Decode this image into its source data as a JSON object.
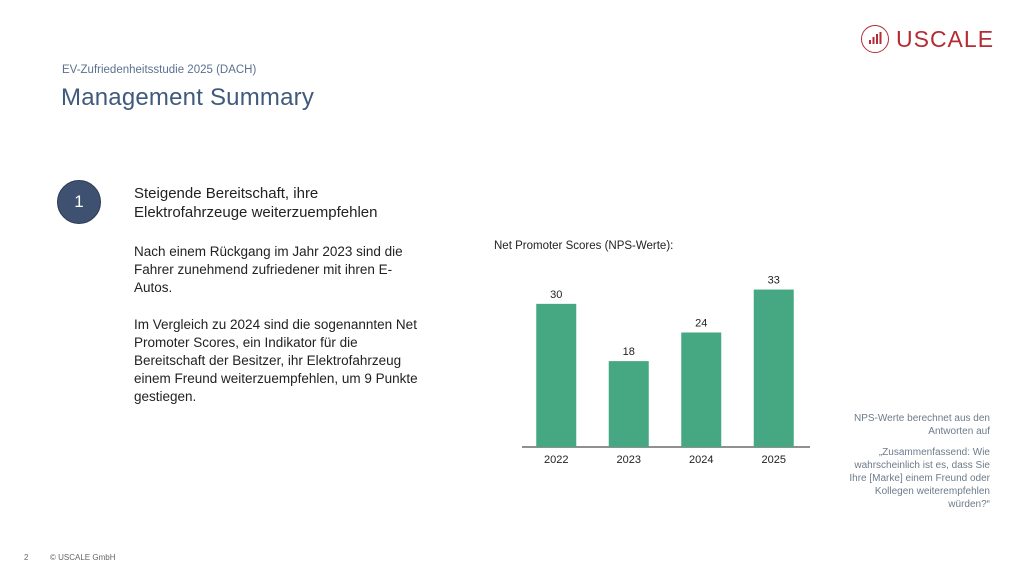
{
  "header": {
    "subtitle": "EV-Zufriedenheitsstudie 2025 (DACH)",
    "title": "Management Summary",
    "logo_text": "USCALE",
    "brand_color": "#b52b34"
  },
  "summary": {
    "number": "1",
    "headline": "Steigende Bereitschaft, ihre Elektrofahrzeuge weiterzuempfehlen",
    "paragraph1": "Nach einem Rückgang im Jahr 2023 sind die Fahrer zunehmend zufriedener mit ihren E-Autos.",
    "paragraph2": "Im Vergleich zu 2024 sind die sogenannten Net Promoter Scores, ein Indikator für die Bereitschaft der Besitzer, ihr Elektrofahrzeug einem Freund weiterzuempfehlen, um 9 Punkte gestiegen."
  },
  "chart_heading": "Net Promoter Scores (NPS-Werte):",
  "chart_data": {
    "type": "bar",
    "title": "",
    "categories": [
      "2022",
      "2023",
      "2024",
      "2025"
    ],
    "values": [
      30,
      18,
      24,
      33
    ],
    "xlabel": "",
    "ylabel": "",
    "ylim": [
      0,
      35
    ],
    "grid": false,
    "data_labels": true,
    "bar_color": "#45a882"
  },
  "notes": {
    "line1": "NPS-Werte berechnet aus den Antworten auf",
    "line2": "„Zusammenfassend: Wie wahrscheinlich ist es, dass Sie Ihre [Marke] einem Freund oder Kollegen weiterempfehlen würden?“"
  },
  "footer": {
    "page_number": "2",
    "copyright": "© USCALE GmbH"
  }
}
